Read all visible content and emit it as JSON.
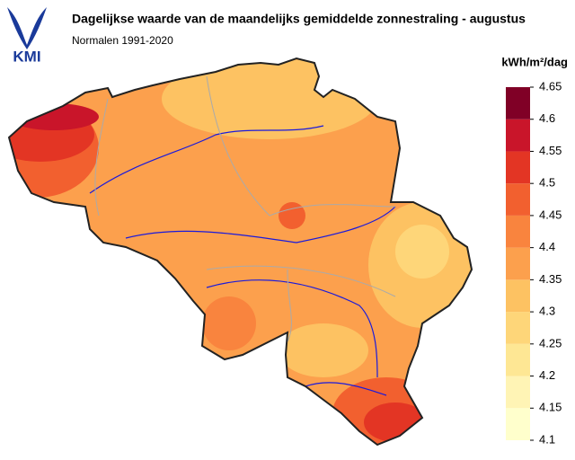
{
  "header": {
    "logo": "KMI",
    "title": "Dagelijkse waarde van de maandelijks gemiddelde zonnestraling - augustus",
    "subtitle": "Normalen 1991-2020"
  },
  "legend": {
    "unit": "kWh/m²/dag",
    "ticks": [
      4.1,
      4.15,
      4.2,
      4.25,
      4.3,
      4.35,
      4.4,
      4.45,
      4.5,
      4.55,
      4.6,
      4.65
    ],
    "colors": [
      "#ffffcc",
      "#fff4b5",
      "#fee794",
      "#fed679",
      "#fdc262",
      "#fca04d",
      "#f9843e",
      "#f2602f",
      "#e33524",
      "#c9152a",
      "#800026"
    ]
  }
}
